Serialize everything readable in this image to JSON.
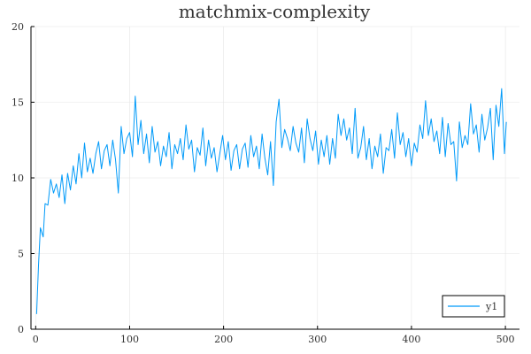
{
  "chart_data": {
    "type": "line",
    "title": "matchmix-complexity",
    "xlabel": "",
    "ylabel": "",
    "xlim": [
      -5,
      515
    ],
    "ylim": [
      0,
      20
    ],
    "xticks": [
      0,
      100,
      200,
      300,
      400,
      500
    ],
    "yticks": [
      0,
      5,
      10,
      15,
      20
    ],
    "grid": true,
    "legend_position": "bottom-right",
    "colors": {
      "y1": "#009af9",
      "axis": "#000000",
      "grid": "#e5e5e5",
      "text": "#333333"
    },
    "series": [
      {
        "name": "y1",
        "x": [
          1,
          3,
          5,
          8,
          10,
          13,
          16,
          19,
          22,
          25,
          28,
          31,
          34,
          37,
          40,
          43,
          46,
          49,
          52,
          55,
          58,
          61,
          64,
          67,
          70,
          73,
          76,
          79,
          82,
          85,
          88,
          91,
          94,
          97,
          100,
          103,
          106,
          109,
          112,
          115,
          118,
          121,
          124,
          127,
          130,
          133,
          136,
          139,
          142,
          145,
          148,
          151,
          154,
          157,
          160,
          163,
          166,
          169,
          172,
          175,
          178,
          181,
          184,
          187,
          190,
          193,
          196,
          199,
          202,
          205,
          208,
          211,
          214,
          217,
          220,
          223,
          226,
          229,
          232,
          235,
          238,
          241,
          244,
          247,
          250,
          253,
          256,
          259,
          262,
          265,
          268,
          271,
          274,
          277,
          280,
          283,
          286,
          289,
          292,
          295,
          298,
          301,
          304,
          307,
          310,
          313,
          316,
          319,
          322,
          325,
          328,
          331,
          334,
          337,
          340,
          343,
          346,
          349,
          352,
          355,
          358,
          361,
          364,
          367,
          370,
          373,
          376,
          379,
          382,
          385,
          388,
          391,
          394,
          397,
          400,
          403,
          406,
          409,
          412,
          415,
          418,
          421,
          424,
          427,
          430,
          433,
          436,
          439,
          442,
          445,
          448,
          451,
          454,
          457,
          460,
          463,
          466,
          469,
          472,
          475,
          478,
          481,
          484,
          487,
          490,
          493,
          496,
          499,
          501
        ],
        "values": [
          1.0,
          4.2,
          6.7,
          6.1,
          8.3,
          8.2,
          9.9,
          9.0,
          9.6,
          8.7,
          10.2,
          8.3,
          10.3,
          9.2,
          10.8,
          9.6,
          11.6,
          10.0,
          12.3,
          10.4,
          11.3,
          10.3,
          11.6,
          12.4,
          10.6,
          11.8,
          12.2,
          10.8,
          12.5,
          11.2,
          9.0,
          13.4,
          11.6,
          12.6,
          13.0,
          11.4,
          15.4,
          12.2,
          13.8,
          11.6,
          12.9,
          11.0,
          13.4,
          11.7,
          12.4,
          10.8,
          12.1,
          11.4,
          13.0,
          10.6,
          12.2,
          11.6,
          12.6,
          11.2,
          13.5,
          11.9,
          12.5,
          10.4,
          12.0,
          11.5,
          13.3,
          10.8,
          12.5,
          11.3,
          12.0,
          10.4,
          11.6,
          12.8,
          11.2,
          12.4,
          10.5,
          11.8,
          12.2,
          10.6,
          11.9,
          12.3,
          10.7,
          12.8,
          11.4,
          12.1,
          10.6,
          12.9,
          11.3,
          10.2,
          12.4,
          9.5,
          13.7,
          15.2,
          12.0,
          13.2,
          12.6,
          11.8,
          13.4,
          12.3,
          11.7,
          13.3,
          11.0,
          13.9,
          12.6,
          11.8,
          13.1,
          10.9,
          12.5,
          11.4,
          12.8,
          10.9,
          12.6,
          11.3,
          14.2,
          12.8,
          13.9,
          12.5,
          13.3,
          11.6,
          14.6,
          11.3,
          12.0,
          13.4,
          11.2,
          12.6,
          10.6,
          12.1,
          11.4,
          12.9,
          10.3,
          12.0,
          11.8,
          13.2,
          11.3,
          14.3,
          12.2,
          13.0,
          11.4,
          12.6,
          10.8,
          12.3,
          11.7,
          13.5,
          12.6,
          15.1,
          12.8,
          13.9,
          12.4,
          13.1,
          11.6,
          14.0,
          11.4,
          13.6,
          12.2,
          12.4,
          9.8,
          13.7,
          12.0,
          12.8,
          12.2,
          14.9,
          12.9,
          13.5,
          11.7,
          14.2,
          12.5,
          13.3,
          14.6,
          11.2,
          14.8,
          13.4,
          15.9,
          11.6,
          13.7
        ]
      }
    ]
  }
}
